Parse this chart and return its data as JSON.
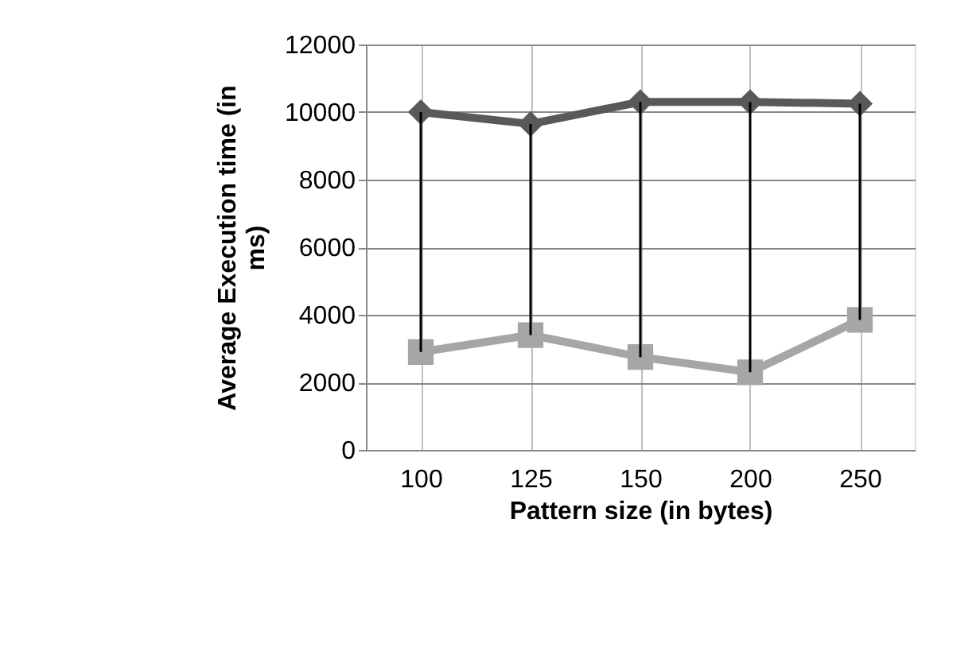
{
  "chart_data": {
    "type": "line",
    "xlabel": "Pattern size (in bytes)",
    "ylabel": "Average Execution time (in ms)",
    "categories": [
      "100",
      "125",
      "150",
      "200",
      "250"
    ],
    "series": [
      {
        "color": "#595959",
        "marker": "diamond",
        "values": [
          10000,
          9650,
          10300,
          10300,
          10250
        ]
      },
      {
        "color": "#a6a6a6",
        "marker": "square",
        "values": [
          2900,
          3400,
          2750,
          2300,
          3850
        ],
        "errors": [
          [
            2900,
            10000
          ],
          [
            3400,
            9650
          ],
          [
            2750,
            10300
          ],
          [
            2300,
            10300
          ],
          [
            3850,
            10250
          ]
        ]
      }
    ],
    "ylim": [
      0,
      12000
    ],
    "yticks": [
      0,
      2000,
      4000,
      6000,
      8000,
      10000,
      12000
    ],
    "grid": true
  }
}
